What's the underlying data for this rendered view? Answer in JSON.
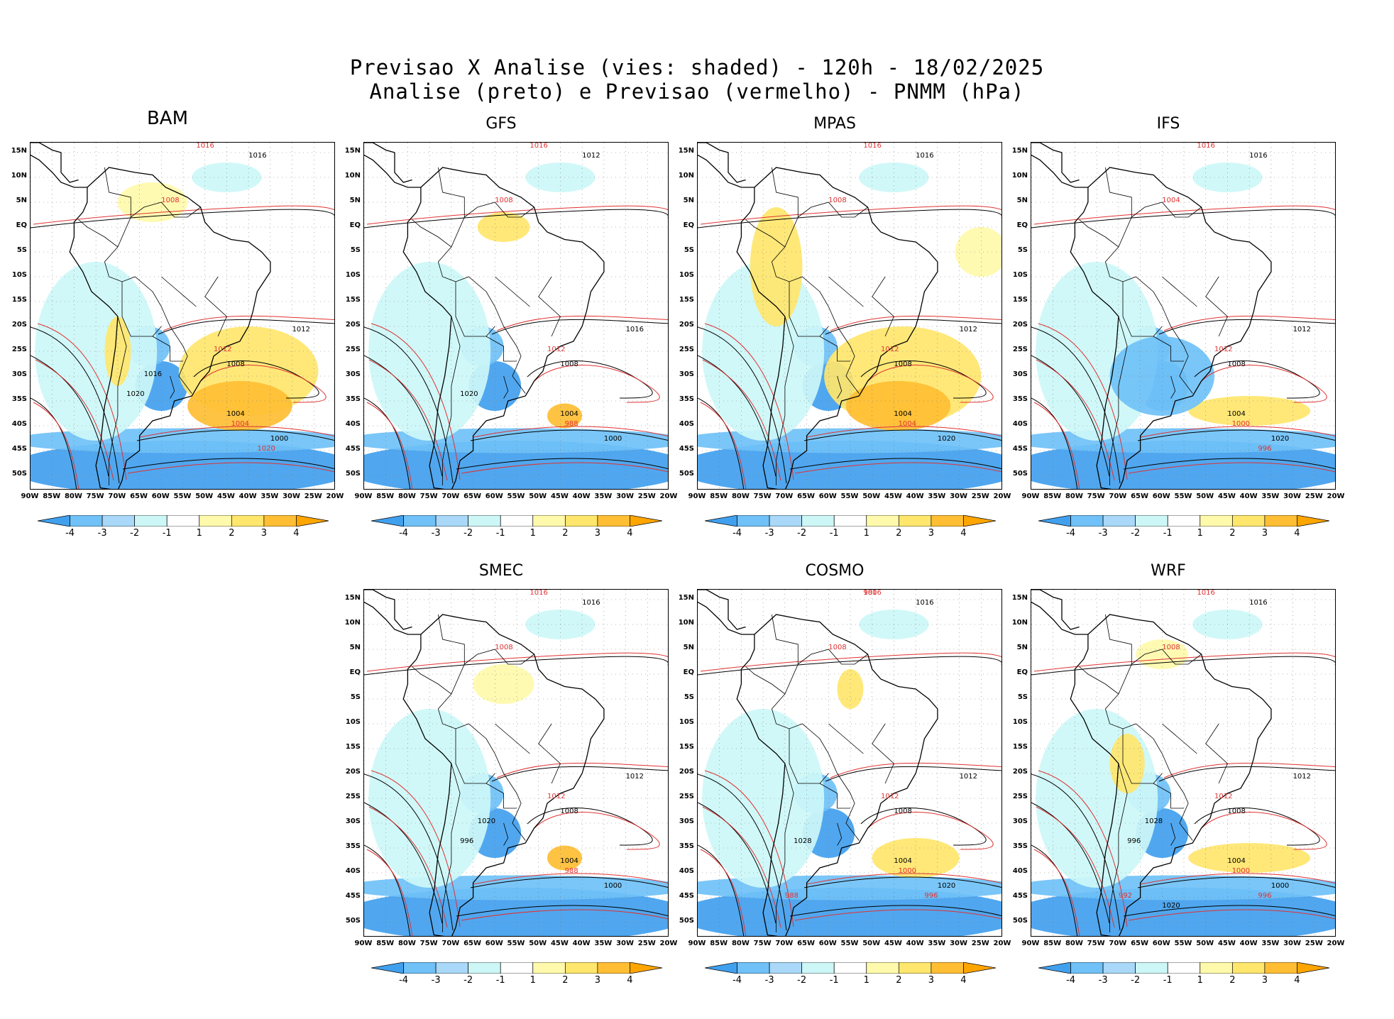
{
  "title": {
    "line1": "Previsao X Analise (vies: shaded) - 120h - 18/02/2025",
    "line2": "Analise (preto) e Previsao (vermelho) - PNMM (hPa)"
  },
  "axes": {
    "lat_labels": [
      "15N",
      "10N",
      "5N",
      "EQ",
      "5S",
      "10S",
      "15S",
      "20S",
      "25S",
      "30S",
      "35S",
      "40S",
      "45S",
      "50S"
    ],
    "lon_labels": [
      "90W",
      "85W",
      "80W",
      "75W",
      "70W",
      "65W",
      "60W",
      "55W",
      "50W",
      "45W",
      "40W",
      "35W",
      "30W",
      "25W",
      "20W"
    ],
    "lat_values": [
      15,
      10,
      5,
      0,
      -5,
      -10,
      -15,
      -20,
      -25,
      -30,
      -35,
      -40,
      -45,
      -50
    ],
    "lon_values": [
      -90,
      -85,
      -80,
      -75,
      -70,
      -65,
      -60,
      -55,
      -50,
      -45,
      -40,
      -35,
      -30,
      -25,
      -20
    ],
    "lat_range": [
      -53,
      17
    ],
    "lon_range": [
      -90,
      -20
    ]
  },
  "colorbar": {
    "labels": [
      "-4",
      "-3",
      "-2",
      "-1",
      "1",
      "2",
      "3",
      "4"
    ],
    "colors": [
      "#41a0ee",
      "#6fc1f7",
      "#a9d8f8",
      "#cdf7f7",
      "#ffffff",
      "#fffaab",
      "#ffe66c",
      "#ffbe33",
      "#ffa500"
    ]
  },
  "colors": {
    "analysis_contour": "#000000",
    "forecast_contour": "#e03232",
    "land_border": "#000000"
  },
  "panels": [
    {
      "name": "BAM",
      "contour_labels": [
        "1016",
        "1012",
        "1008",
        "1004",
        "1000",
        "1020",
        "1016"
      ],
      "forecast_labels": [
        "1016",
        "1012",
        "1008",
        "1004",
        "1020"
      ]
    },
    {
      "name": "GFS",
      "contour_labels": [
        "1012",
        "1016",
        "1008",
        "1004",
        "1000",
        "1020"
      ],
      "forecast_labels": [
        "1016",
        "1012",
        "1008",
        "988"
      ]
    },
    {
      "name": "MPAS",
      "contour_labels": [
        "1016",
        "1012",
        "1008",
        "1004",
        "1020"
      ],
      "forecast_labels": [
        "1016",
        "1012",
        "1008",
        "1004"
      ]
    },
    {
      "name": "IFS",
      "contour_labels": [
        "1016",
        "1012",
        "1008",
        "1004",
        "1020"
      ],
      "forecast_labels": [
        "1016",
        "1012",
        "1004",
        "1000",
        "996"
      ]
    },
    {
      "name": "SMEC",
      "contour_labels": [
        "1016",
        "1012",
        "1008",
        "1004",
        "1000",
        "996",
        "1020"
      ],
      "forecast_labels": [
        "1016",
        "1012",
        "1008",
        "988"
      ]
    },
    {
      "name": "COSMO",
      "contour_labels": [
        "1016",
        "1012",
        "1008",
        "1004",
        "1020",
        "1028"
      ],
      "forecast_labels": [
        "1016",
        "1012",
        "1008",
        "1000",
        "996",
        "988",
        "980"
      ]
    },
    {
      "name": "WRF",
      "contour_labels": [
        "1016",
        "1012",
        "1008",
        "1004",
        "1000",
        "996",
        "1028",
        "1020"
      ],
      "forecast_labels": [
        "1016",
        "1012",
        "1008",
        "1000",
        "996",
        "992"
      ]
    }
  ]
}
